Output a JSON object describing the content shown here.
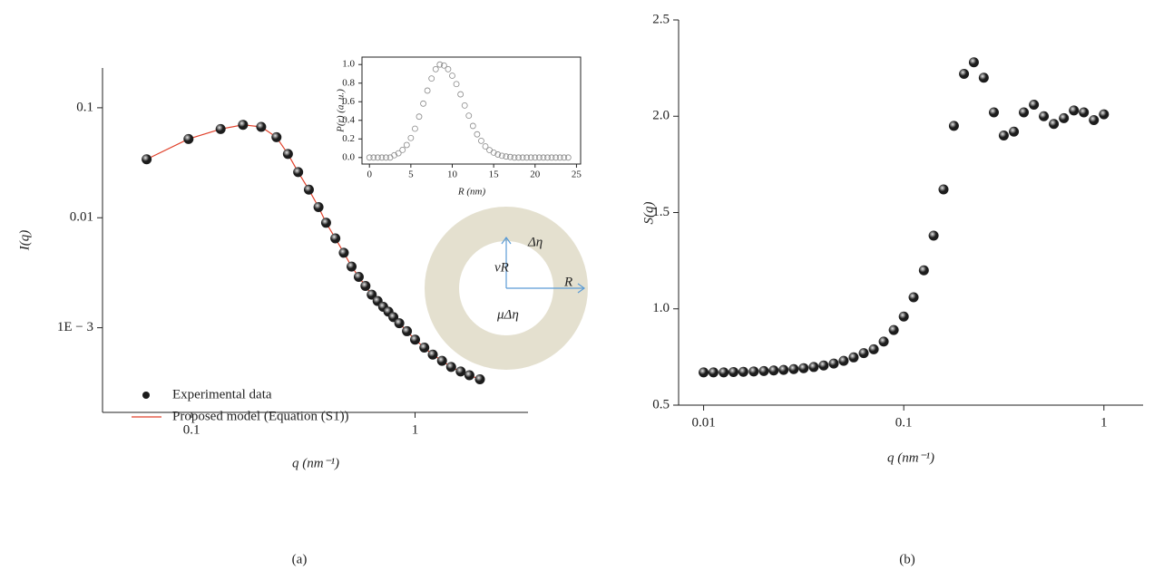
{
  "chart_data": [
    {
      "type": "scatter",
      "xscale": "log",
      "yscale": "log",
      "x_label": "q (nm⁻¹)",
      "y_label": "I(q)",
      "xlim": [
        0.04,
        3.2
      ],
      "ylim": [
        0.00017,
        0.23
      ],
      "xticks": [
        0.1,
        1
      ],
      "yticks": [
        0.1,
        0.01,
        {
          "value": 0.001,
          "label": "1E − 3"
        }
      ],
      "x": [
        0.063,
        0.097,
        0.135,
        0.17,
        0.205,
        0.24,
        0.27,
        0.3,
        0.335,
        0.37,
        0.4,
        0.44,
        0.48,
        0.52,
        0.56,
        0.6,
        0.64,
        0.68,
        0.72,
        0.76,
        0.8,
        0.85,
        0.92,
        1.0,
        1.1,
        1.2,
        1.32,
        1.45,
        1.6,
        1.75,
        1.95
      ],
      "series": [
        {
          "name": "Experimental data",
          "mode": "markers",
          "color": "#1c1c1c",
          "values": [
            0.034,
            0.052,
            0.064,
            0.07,
            0.067,
            0.054,
            0.038,
            0.026,
            0.018,
            0.0125,
            0.009,
            0.0065,
            0.0048,
            0.0036,
            0.0029,
            0.0024,
            0.002,
            0.00175,
            0.00155,
            0.0014,
            0.00125,
            0.0011,
            0.00093,
            0.00078,
            0.00066,
            0.00057,
            0.0005,
            0.00044,
            0.0004,
            0.00037,
            0.00034
          ]
        },
        {
          "name": "Proposed model (Equation (S1))",
          "mode": "line",
          "color": "#e0402a",
          "values": [
            0.034,
            0.052,
            0.064,
            0.07,
            0.067,
            0.054,
            0.038,
            0.026,
            0.018,
            0.0125,
            0.009,
            0.0065,
            0.0048,
            0.0036,
            0.0029,
            0.0024,
            0.002,
            0.00175,
            0.00155,
            0.0014,
            0.00125,
            0.0011,
            0.00093,
            0.00078,
            0.00066,
            0.00057,
            0.0005,
            0.00044,
            0.0004,
            0.00037,
            0.00034
          ]
        }
      ],
      "legend": "bottom-left",
      "annotations": [
        "Δη",
        "νR",
        "R",
        "μΔη"
      ],
      "caption": "(a)"
    },
    {
      "type": "scatter",
      "x_label": "R (nm)",
      "y_label": "P(r) (a. u.)",
      "xlim": [
        -0.9,
        25.5
      ],
      "ylim": [
        -0.07,
        1.08
      ],
      "xticks": [
        0,
        5,
        10,
        15,
        20,
        25
      ],
      "yticks": [
        {
          "value": 0,
          "label": "0.0"
        },
        0.2,
        0.4,
        0.6,
        0.8,
        {
          "value": 1,
          "label": "1.0"
        }
      ],
      "x": [
        0,
        0.5,
        1,
        1.5,
        2,
        2.5,
        3,
        3.5,
        4,
        4.5,
        5,
        5.5,
        6,
        6.5,
        7,
        7.5,
        8,
        8.5,
        9,
        9.5,
        10,
        10.5,
        11,
        11.5,
        12,
        12.5,
        13,
        13.5,
        14,
        14.5,
        15,
        15.5,
        16,
        16.5,
        17,
        17.5,
        18,
        18.5,
        19,
        19.5,
        20,
        20.5,
        21,
        21.5,
        22,
        22.5,
        23,
        23.5,
        24
      ],
      "series": [
        {
          "mode": "hollow",
          "color": "#8a8a8a",
          "values": [
            0,
            0,
            0,
            0,
            0,
            0,
            0.025,
            0.046,
            0.082,
            0.135,
            0.21,
            0.31,
            0.44,
            0.58,
            0.72,
            0.85,
            0.95,
            1.0,
            0.99,
            0.95,
            0.88,
            0.79,
            0.68,
            0.56,
            0.45,
            0.34,
            0.25,
            0.18,
            0.12,
            0.08,
            0.053,
            0.033,
            0.019,
            0.011,
            0.006,
            0,
            0,
            0,
            0,
            0,
            0,
            0,
            0,
            0,
            0,
            0,
            0,
            0,
            0
          ]
        }
      ],
      "frame": true
    },
    {
      "type": "scatter",
      "xscale": "log",
      "x_label": "q (nm⁻¹)",
      "y_label": "S(q)",
      "xlim": [
        0.0075,
        1.57
      ],
      "ylim": [
        0.5,
        2.5
      ],
      "xticks": [
        0.01,
        0.1,
        1
      ],
      "yticks": [
        0.5,
        {
          "value": 1,
          "label": "1.0"
        },
        1.5,
        {
          "value": 2,
          "label": "2.0"
        },
        2.5
      ],
      "x": [
        0.01,
        0.0112,
        0.0126,
        0.0141,
        0.0158,
        0.0178,
        0.02,
        0.0224,
        0.0251,
        0.0282,
        0.0316,
        0.0355,
        0.0398,
        0.0447,
        0.0501,
        0.0562,
        0.0631,
        0.0708,
        0.0794,
        0.0891,
        0.1,
        0.112,
        0.126,
        0.141,
        0.158,
        0.178,
        0.2,
        0.224,
        0.251,
        0.282,
        0.316,
        0.355,
        0.398,
        0.447,
        0.501,
        0.562,
        0.631,
        0.708,
        0.794,
        0.891,
        1.0
      ],
      "series": [
        {
          "mode": "markers",
          "color": "#1c1c1c",
          "values": [
            0.67,
            0.67,
            0.67,
            0.672,
            0.673,
            0.675,
            0.677,
            0.68,
            0.683,
            0.687,
            0.692,
            0.698,
            0.706,
            0.716,
            0.73,
            0.748,
            0.77,
            0.79,
            0.83,
            0.89,
            0.96,
            1.06,
            1.2,
            1.38,
            1.62,
            1.95,
            2.22,
            2.28,
            2.2,
            2.02,
            1.9,
            1.92,
            2.02,
            2.06,
            2.0,
            1.96,
            1.99,
            2.03,
            2.02,
            1.98,
            2.01
          ]
        }
      ],
      "caption": "(b)"
    }
  ]
}
